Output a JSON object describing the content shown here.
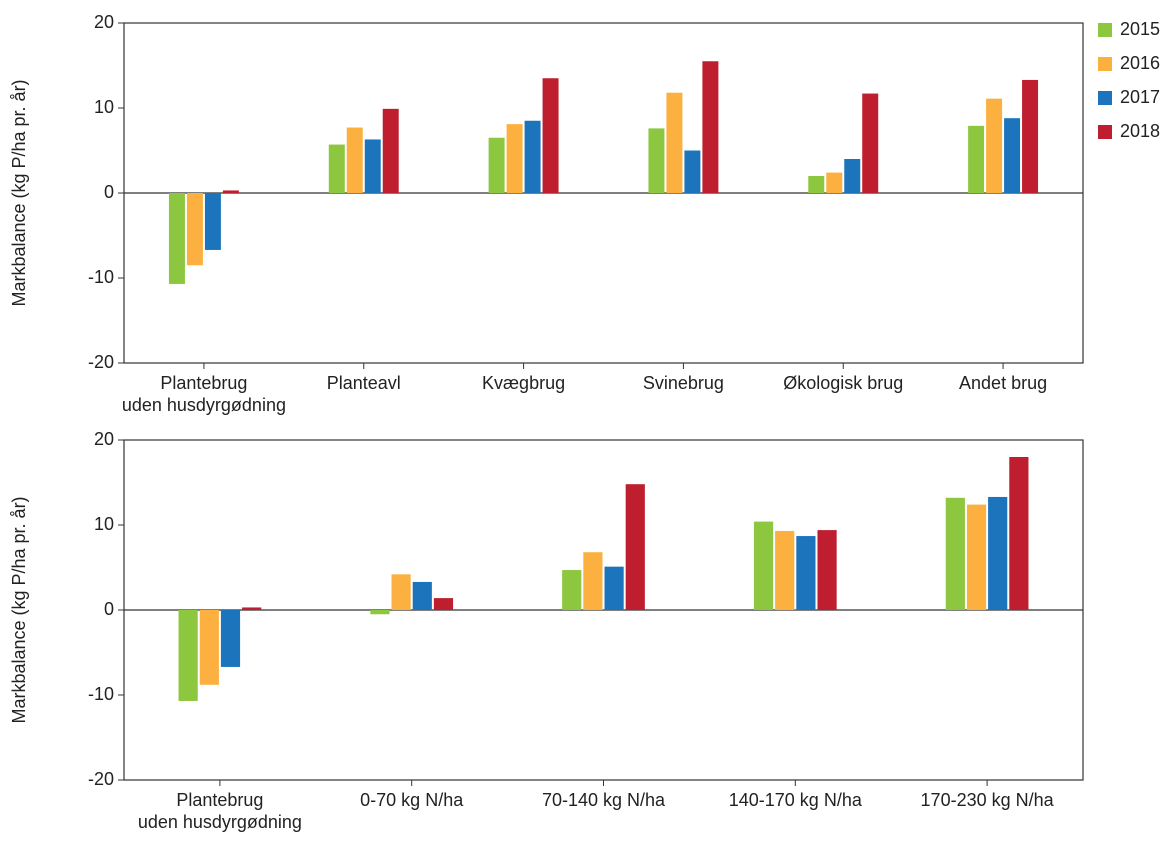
{
  "chart_data": [
    {
      "type": "bar",
      "y_label": "Markbalance (kg P/ha pr. år)",
      "categories": [
        "Plantebrug\nuden husdyrgødning",
        "Planteavl",
        "Kvægbrug",
        "Svinebrug",
        "Økologisk brug",
        "Andet brug"
      ],
      "series": [
        {
          "name": "2015",
          "color": "#8dc63f",
          "values": [
            -10.7,
            5.7,
            6.5,
            7.6,
            2.0,
            7.9
          ]
        },
        {
          "name": "2016",
          "color": "#fbb040",
          "values": [
            -8.5,
            7.7,
            8.1,
            11.8,
            2.4,
            11.1
          ]
        },
        {
          "name": "2017",
          "color": "#1c75bc",
          "values": [
            -6.7,
            6.3,
            8.5,
            5.0,
            4.0,
            8.8
          ]
        },
        {
          "name": "2018",
          "color": "#be1e2d",
          "values": [
            0.3,
            9.9,
            13.5,
            15.5,
            11.7,
            13.3
          ]
        }
      ],
      "ylim": [
        -20,
        20
      ],
      "yticks": [
        -20,
        -10,
        0,
        10,
        20
      ],
      "legend": "right"
    },
    {
      "type": "bar",
      "y_label": "Markbalance (kg P/ha pr. år)",
      "categories": [
        "Plantebrug\nuden husdyrgødning",
        "0-70 kg N/ha",
        "70-140 kg N/ha",
        "140-170 kg N/ha",
        "170-230 kg N/ha"
      ],
      "series": [
        {
          "color": "#8dc63f",
          "values": [
            -10.7,
            -0.5,
            4.7,
            10.4,
            13.2
          ]
        },
        {
          "color": "#fbb040",
          "values": [
            -8.8,
            4.2,
            6.8,
            9.3,
            12.4
          ]
        },
        {
          "color": "#1c75bc",
          "values": [
            -6.7,
            3.3,
            5.1,
            8.7,
            13.3
          ]
        },
        {
          "color": "#be1e2d",
          "values": [
            0.3,
            1.4,
            14.8,
            9.4,
            18.0
          ]
        }
      ],
      "ylim": [
        -20,
        20
      ],
      "yticks": [
        -20,
        -10,
        0,
        10,
        20
      ]
    }
  ]
}
